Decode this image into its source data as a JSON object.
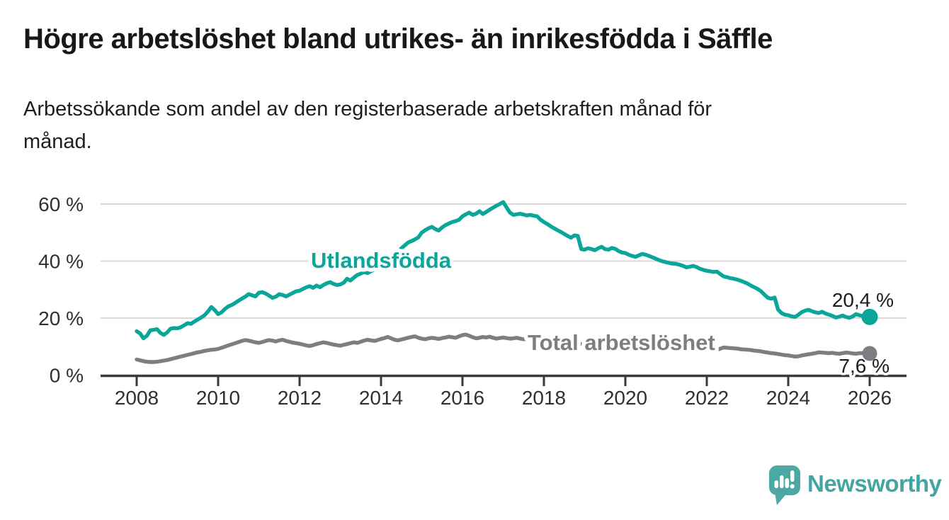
{
  "chart_data": {
    "type": "line",
    "title": "Högre arbetslöshet bland utrikes- än inrikesfödda i Säffle",
    "subtitle_lines": [
      "Arbetssökande som andel av den registerbaserade arbetskraften månad för",
      "månad."
    ],
    "x_unit": "month",
    "x_start": "2008-01",
    "x_end": "2026-01",
    "xticks": [
      "2008",
      "2010",
      "2012",
      "2014",
      "2016",
      "2018",
      "2020",
      "2022",
      "2024",
      "2026"
    ],
    "yticks": [
      {
        "value": 0,
        "label": "0 %"
      },
      {
        "value": 20,
        "label": "20 %"
      },
      {
        "value": 40,
        "label": "40 %"
      },
      {
        "value": 60,
        "label": "60 %"
      }
    ],
    "ylim": [
      0,
      62
    ],
    "grid": "horizontal",
    "legend_position": "inline-labels",
    "colors": {
      "axis": "#3a3a3a",
      "gridline": "#d9d9d9",
      "tick_text": "#303030"
    },
    "series": [
      {
        "name": "Utlandsfödda",
        "color": "#0aa69a",
        "end_label": "20,4 %",
        "end_value": 20.4,
        "values": [
          15.4,
          14.6,
          12.9,
          13.8,
          15.7,
          15.9,
          16.1,
          14.8,
          14.1,
          15.0,
          16.3,
          16.5,
          16.4,
          16.8,
          17.5,
          18.2,
          18.0,
          18.8,
          19.5,
          20.2,
          21.0,
          22.3,
          23.9,
          22.8,
          21.4,
          22.0,
          23.2,
          24.1,
          24.6,
          25.3,
          26.1,
          26.8,
          27.5,
          28.4,
          28.0,
          27.6,
          28.9,
          29.1,
          28.6,
          27.9,
          27.1,
          27.5,
          28.4,
          28.1,
          27.6,
          28.2,
          28.8,
          29.4,
          29.6,
          30.2,
          30.8,
          31.2,
          30.6,
          31.4,
          30.8,
          31.6,
          32.2,
          32.6,
          32.0,
          31.6,
          31.8,
          32.4,
          33.8,
          33.2,
          34.2,
          35.1,
          35.6,
          36.2,
          35.8,
          36.4,
          37.0,
          37.4,
          38.0,
          38.8,
          39.6,
          40.4,
          41.5,
          43.0,
          44.5,
          45.5,
          46.5,
          47.0,
          47.6,
          48.3,
          50.0,
          50.8,
          51.5,
          52.0,
          51.2,
          50.7,
          51.8,
          52.6,
          53.2,
          53.7,
          54.0,
          54.5,
          55.7,
          56.4,
          57.0,
          56.2,
          56.6,
          57.5,
          56.5,
          57.2,
          58.0,
          58.7,
          59.4,
          60.0,
          60.7,
          58.8,
          57.0,
          56.2,
          56.4,
          56.6,
          56.3,
          56.0,
          56.2,
          55.9,
          55.7,
          54.5,
          53.7,
          53.0,
          52.2,
          51.5,
          50.8,
          50.2,
          49.5,
          48.8,
          48.2,
          49.0,
          48.8,
          44.2,
          44.0,
          44.5,
          44.2,
          43.8,
          44.5,
          45.0,
          44.2,
          44.0,
          44.6,
          44.3,
          43.5,
          43.0,
          42.8,
          42.2,
          41.8,
          41.5,
          42.0,
          42.5,
          42.2,
          41.8,
          41.3,
          40.8,
          40.3,
          39.9,
          39.6,
          39.3,
          39.1,
          39.0,
          38.7,
          38.3,
          37.8,
          38.0,
          38.3,
          37.9,
          37.3,
          36.9,
          36.6,
          36.4,
          36.2,
          36.3,
          35.4,
          34.6,
          34.3,
          34.0,
          33.8,
          33.5,
          33.1,
          32.6,
          32.1,
          31.4,
          30.8,
          30.2,
          29.4,
          28.2,
          27.1,
          26.8,
          27.2,
          23.0,
          21.8,
          21.2,
          21.0,
          20.6,
          20.4,
          21.2,
          22.1,
          22.6,
          22.9,
          22.4,
          22.0,
          21.8,
          22.2,
          21.6,
          21.2,
          20.8,
          20.2,
          20.5,
          20.9,
          20.4,
          20.1,
          20.6,
          21.4,
          21.0,
          20.7,
          20.4,
          20.4
        ]
      },
      {
        "name": "Total arbetslöshet",
        "color": "#7d7d82",
        "end_label": "7,6 %",
        "end_value": 7.6,
        "values": [
          5.5,
          5.2,
          4.9,
          4.7,
          4.6,
          4.6,
          4.7,
          4.9,
          5.1,
          5.3,
          5.6,
          5.9,
          6.2,
          6.5,
          6.8,
          7.1,
          7.4,
          7.7,
          8.0,
          8.2,
          8.5,
          8.7,
          8.9,
          9.0,
          9.2,
          9.6,
          10.0,
          10.4,
          10.8,
          11.2,
          11.6,
          12.0,
          12.3,
          12.1,
          11.8,
          11.5,
          11.3,
          11.6,
          12.0,
          12.3,
          12.1,
          11.8,
          12.2,
          12.4,
          12.0,
          11.7,
          11.4,
          11.2,
          11.0,
          10.7,
          10.4,
          10.2,
          10.5,
          10.9,
          11.2,
          11.5,
          11.3,
          11.0,
          10.7,
          10.5,
          10.3,
          10.6,
          10.9,
          11.2,
          11.5,
          11.3,
          11.7,
          12.1,
          12.4,
          12.2,
          12.0,
          12.3,
          12.7,
          13.0,
          13.4,
          12.9,
          12.4,
          12.2,
          12.5,
          12.8,
          13.1,
          13.4,
          13.6,
          13.1,
          12.8,
          12.6,
          12.9,
          13.1,
          12.9,
          12.7,
          13.0,
          13.2,
          13.5,
          13.3,
          13.1,
          13.6,
          14.0,
          14.2,
          13.8,
          13.3,
          12.9,
          13.1,
          13.4,
          13.2,
          13.5,
          13.1,
          12.8,
          13.0,
          13.2,
          13.0,
          12.8,
          12.9,
          13.1,
          12.8,
          12.6,
          12.7,
          12.5,
          12.3,
          12.2,
          12.1,
          12.0,
          11.9,
          11.8,
          11.7,
          11.6,
          11.5,
          11.4,
          11.3,
          11.2,
          11.1,
          11.0,
          10.9,
          10.8,
          10.7,
          10.6,
          10.5,
          10.4,
          10.3,
          10.2,
          10.1,
          10.0,
          9.9,
          9.9,
          9.8,
          9.9,
          10.1,
          10.4,
          10.7,
          10.9,
          10.8,
          10.7,
          10.5,
          10.4,
          10.3,
          10.2,
          10.1,
          10.0,
          9.9,
          9.8,
          9.7,
          9.6,
          9.5,
          9.4,
          9.3,
          9.2,
          9.1,
          9.0,
          8.9,
          8.9,
          8.8,
          8.8,
          8.9,
          9.3,
          9.7,
          9.6,
          9.5,
          9.4,
          9.3,
          9.1,
          9.0,
          8.9,
          8.8,
          8.6,
          8.5,
          8.3,
          8.1,
          7.9,
          7.7,
          7.6,
          7.4,
          7.2,
          7.0,
          6.9,
          6.7,
          6.5,
          6.6,
          6.9,
          7.1,
          7.3,
          7.5,
          7.7,
          8.0,
          7.9,
          7.8,
          7.7,
          7.8,
          7.6,
          7.5,
          7.7,
          7.9,
          7.8,
          7.6,
          7.5,
          7.7,
          7.7,
          7.6,
          7.6
        ]
      }
    ]
  },
  "footer": {
    "brand": "Newsworthy",
    "brand_color": "#43a5a3",
    "logo_color": "#4ba8a3"
  }
}
